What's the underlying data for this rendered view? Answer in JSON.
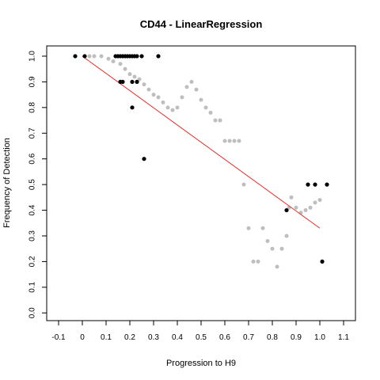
{
  "chart_data": {
    "type": "scatter",
    "title": "CD44 - LinearRegression",
    "xlabel": "Progression to H9",
    "ylabel": "Frequency of Detection",
    "xlim": [
      -0.15,
      1.15
    ],
    "ylim": [
      -0.03,
      1.04
    ],
    "xticks": [
      "-0.1",
      "0",
      "0.1",
      "0.2",
      "0.3",
      "0.4",
      "0.5",
      "0.6",
      "0.7",
      "0.8",
      "0.9",
      "1.0",
      "1.1"
    ],
    "yticks": [
      "0.0",
      "0.1",
      "0.2",
      "0.3",
      "0.4",
      "0.5",
      "0.6",
      "0.7",
      "0.8",
      "0.9",
      "1.0"
    ],
    "colors": {
      "observed": "#000000",
      "smoothed": "#bebebe",
      "regression": "#e0302a"
    },
    "series": [
      {
        "name": "observed",
        "style": "black points",
        "x": [
          -0.03,
          0.01,
          0.14,
          0.15,
          0.16,
          0.17,
          0.18,
          0.19,
          0.2,
          0.21,
          0.22,
          0.23,
          0.25,
          0.32,
          0.16,
          0.17,
          0.21,
          0.23,
          0.21,
          0.26,
          0.86,
          0.95,
          0.98,
          1.03,
          1.01
        ],
        "y": [
          1.0,
          1.0,
          1.0,
          1.0,
          1.0,
          1.0,
          1.0,
          1.0,
          1.0,
          1.0,
          1.0,
          1.0,
          1.0,
          1.0,
          0.9,
          0.9,
          0.9,
          0.9,
          0.8,
          0.6,
          0.4,
          0.5,
          0.5,
          0.5,
          0.2
        ]
      },
      {
        "name": "smoothed",
        "style": "gray points",
        "x": [
          0.03,
          0.05,
          0.08,
          0.11,
          0.13,
          0.16,
          0.18,
          0.2,
          0.22,
          0.24,
          0.26,
          0.28,
          0.3,
          0.32,
          0.34,
          0.36,
          0.38,
          0.4,
          0.42,
          0.44,
          0.46,
          0.48,
          0.5,
          0.52,
          0.54,
          0.56,
          0.58,
          0.6,
          0.62,
          0.64,
          0.66,
          0.68,
          0.7,
          0.72,
          0.74,
          0.76,
          0.78,
          0.8,
          0.82,
          0.84,
          0.86,
          0.87,
          0.88,
          0.9,
          0.92,
          0.94,
          0.96,
          0.98,
          1.0
        ],
        "y": [
          1.0,
          1.0,
          1.0,
          0.99,
          0.98,
          0.97,
          0.95,
          0.93,
          0.92,
          0.91,
          0.89,
          0.87,
          0.85,
          0.84,
          0.82,
          0.8,
          0.79,
          0.8,
          0.84,
          0.88,
          0.9,
          0.87,
          0.83,
          0.8,
          0.78,
          0.75,
          0.75,
          0.67,
          0.67,
          0.67,
          0.67,
          0.5,
          0.33,
          0.2,
          0.2,
          0.33,
          0.28,
          0.25,
          0.18,
          0.25,
          0.3,
          0.41,
          0.45,
          0.41,
          0.39,
          0.4,
          0.41,
          0.43,
          0.44
        ]
      },
      {
        "name": "regression",
        "style": "red line",
        "x": [
          0.0,
          1.0
        ],
        "y": [
          1.0,
          0.33
        ]
      }
    ]
  }
}
